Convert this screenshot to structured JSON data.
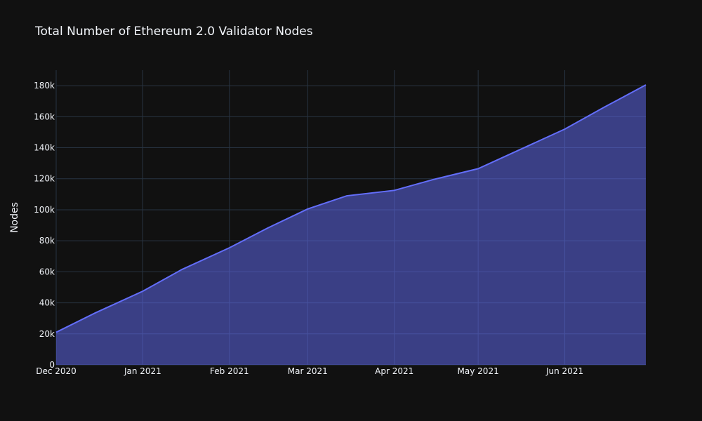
{
  "chart_data": {
    "type": "area",
    "title": "Total Number of Ethereum 2.0 Validator Nodes",
    "xlabel": "",
    "ylabel": "Nodes",
    "x": [
      "2020-12-01",
      "2020-12-15",
      "2021-01-01",
      "2021-01-15",
      "2021-02-01",
      "2021-02-15",
      "2021-03-01",
      "2021-03-15",
      "2021-04-01",
      "2021-04-15",
      "2021-05-01",
      "2021-05-15",
      "2021-06-01",
      "2021-06-15",
      "2021-06-30"
    ],
    "series": [
      {
        "values": [
          21000,
          33500,
          47500,
          61500,
          75500,
          88500,
          100500,
          109000,
          112500,
          119500,
          126500,
          138000,
          152000,
          166000,
          180500
        ]
      }
    ],
    "ylim": [
      0,
      190000
    ],
    "xlim": [
      "2020-12-01",
      "2021-06-30"
    ],
    "y_ticks": [
      {
        "value": 0,
        "label": "0"
      },
      {
        "value": 20000,
        "label": "20k"
      },
      {
        "value": 40000,
        "label": "40k"
      },
      {
        "value": 60000,
        "label": "60k"
      },
      {
        "value": 80000,
        "label": "80k"
      },
      {
        "value": 100000,
        "label": "100k"
      },
      {
        "value": 120000,
        "label": "120k"
      },
      {
        "value": 140000,
        "label": "140k"
      },
      {
        "value": 160000,
        "label": "160k"
      },
      {
        "value": 180000,
        "label": "180k"
      }
    ],
    "x_ticks": [
      {
        "value": "2020-12-01",
        "label": "Dec 2020"
      },
      {
        "value": "2021-01-01",
        "label": "Jan 2021"
      },
      {
        "value": "2021-02-01",
        "label": "Feb 2021"
      },
      {
        "value": "2021-03-01",
        "label": "Mar 2021"
      },
      {
        "value": "2021-04-01",
        "label": "Apr 2021"
      },
      {
        "value": "2021-05-01",
        "label": "May 2021"
      },
      {
        "value": "2021-06-01",
        "label": "Jun 2021"
      }
    ],
    "grid": true,
    "legend": "none",
    "colors": {
      "background": "#111111",
      "series": "#636efa",
      "grid": "#283442",
      "text": "#f2f5fa"
    }
  }
}
